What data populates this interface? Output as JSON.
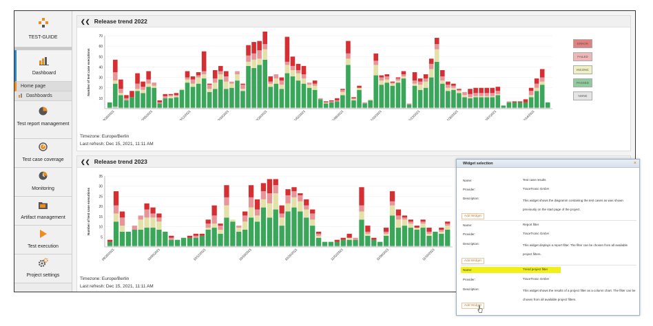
{
  "app": {
    "logo_label": "TEST-GUIDE"
  },
  "sidebar": {
    "dashboard": "Dashboard",
    "home_page": "Home page",
    "dashboards": "Dashboards",
    "items": [
      {
        "label": "Test report management",
        "icon": "pie-chart-icon"
      },
      {
        "label": "Test case coverage",
        "icon": "coverage-gauge-icon"
      },
      {
        "label": "Monitoring",
        "icon": "clock-icon"
      },
      {
        "label": "Artifact management",
        "icon": "folder-icon"
      },
      {
        "label": "Test execution",
        "icon": "play-icon"
      },
      {
        "label": "Project settings",
        "icon": "gear-icon"
      }
    ]
  },
  "panels": [
    {
      "title": "Release trend 2022",
      "timezone": "Timezone: Europe/Berlin",
      "refresh": "Last refresh:  Dec 15, 2021, 11:11 AM"
    },
    {
      "title": "Release trend 2023",
      "timezone": "Timezone: Europe/Berlin",
      "refresh": "Last refresh:  Dec 15, 2021, 11:11 AM"
    }
  ],
  "legend": [
    "ERROR",
    "FAILED",
    "INCONC",
    "PASSED",
    "NONE"
  ],
  "colors": {
    "error": "#d62f33",
    "failed": "#e8959a",
    "inconc": "#e3e0a8",
    "passed": "#3aa65a",
    "none": "#c8c8c8",
    "accent": "#f08c1e",
    "active": "#2e85c8"
  },
  "chart_data": [
    {
      "type": "bar",
      "title": "Release trend 2022",
      "ylabel": "Number of test case executions",
      "ylim": [
        0,
        70
      ],
      "yticks": [
        10,
        20,
        30,
        40,
        50,
        60,
        70
      ],
      "xtick_labels": [
        "09/28/2021",
        "10/05/2021",
        "10/12/2021",
        "10/19/2021",
        "10/26/2021",
        "11/02/2021",
        "11/09/2021",
        "11/16/2021",
        "11/23/2021",
        "11/30/2021",
        "12/07/2021",
        "12/14/2021"
      ],
      "series_order": [
        "none",
        "passed",
        "inconc",
        "failed",
        "error"
      ],
      "stacks": [
        [
          1,
          5,
          0,
          0,
          0
        ],
        [
          2,
          22,
          3,
          8,
          12
        ],
        [
          1,
          12,
          2,
          4,
          9
        ],
        [
          1,
          7,
          0,
          2,
          3
        ],
        [
          1,
          10,
          0,
          0,
          6
        ],
        [
          1,
          16,
          2,
          5,
          10
        ],
        [
          1,
          14,
          3,
          3,
          5
        ],
        [
          1,
          20,
          3,
          4,
          8
        ],
        [
          1,
          19,
          2,
          3,
          0
        ],
        [
          1,
          4,
          0,
          1,
          2
        ],
        [
          1,
          9,
          0,
          2,
          2
        ],
        [
          1,
          9,
          2,
          1,
          1
        ],
        [
          1,
          10,
          1,
          1,
          2
        ],
        [
          1,
          17,
          1,
          0,
          0
        ],
        [
          1,
          24,
          3,
          2,
          6
        ],
        [
          1,
          20,
          3,
          4,
          3
        ],
        [
          1,
          23,
          6,
          2,
          3
        ],
        [
          1,
          28,
          4,
          3,
          19
        ],
        [
          1,
          15,
          3,
          4,
          1
        ],
        [
          1,
          18,
          6,
          4,
          8
        ],
        [
          1,
          27,
          5,
          3,
          5
        ],
        [
          1,
          18,
          7,
          5,
          5
        ],
        [
          1,
          19,
          4,
          2,
          0
        ],
        [
          1,
          26,
          6,
          3,
          0
        ],
        [
          1,
          16,
          2,
          4,
          1
        ],
        [
          1,
          40,
          4,
          6,
          10
        ],
        [
          1,
          38,
          8,
          6,
          11
        ],
        [
          1,
          41,
          6,
          8,
          9
        ],
        [
          1,
          46,
          10,
          5,
          12
        ],
        [
          1,
          20,
          3,
          2,
          5
        ],
        [
          1,
          23,
          5,
          4,
          0
        ],
        [
          1,
          18,
          4,
          4,
          3
        ],
        [
          1,
          33,
          8,
          3,
          24
        ],
        [
          1,
          30,
          6,
          4,
          9
        ],
        [
          1,
          26,
          7,
          3,
          6
        ],
        [
          1,
          23,
          5,
          4,
          8
        ],
        [
          1,
          19,
          3,
          2,
          0
        ],
        [
          1,
          17,
          4,
          2,
          3
        ],
        [
          1,
          8,
          0,
          1,
          0
        ],
        [
          1,
          4,
          1,
          0,
          1
        ],
        [
          1,
          5,
          0,
          1,
          1
        ],
        [
          1,
          6,
          0,
          1,
          2
        ],
        [
          1,
          12,
          3,
          2,
          1
        ],
        [
          1,
          41,
          6,
          5,
          12
        ],
        [
          1,
          7,
          1,
          1,
          1
        ],
        [
          1,
          17,
          2,
          0,
          2
        ],
        [
          1,
          4,
          0,
          1,
          0
        ],
        [
          1,
          7,
          1,
          0,
          0
        ],
        [
          1,
          31,
          10,
          4,
          7
        ],
        [
          1,
          22,
          4,
          3,
          2
        ],
        [
          1,
          24,
          3,
          3,
          2
        ],
        [
          1,
          21,
          2,
          1,
          1
        ],
        [
          1,
          24,
          2,
          2,
          1
        ],
        [
          1,
          28,
          2,
          2,
          3
        ],
        [
          1,
          3,
          0,
          1,
          0
        ],
        [
          1,
          21,
          2,
          3,
          8
        ],
        [
          1,
          17,
          5,
          3,
          3
        ],
        [
          1,
          19,
          6,
          3,
          4
        ],
        [
          1,
          29,
          8,
          5,
          5
        ],
        [
          1,
          44,
          12,
          5,
          6
        ],
        [
          1,
          23,
          3,
          4,
          6
        ],
        [
          1,
          16,
          3,
          3,
          3
        ],
        [
          1,
          17,
          2,
          2,
          2
        ],
        [
          1,
          14,
          2,
          1,
          1
        ],
        [
          1,
          10,
          2,
          3,
          0
        ],
        [
          1,
          9,
          1,
          3,
          5
        ],
        [
          1,
          10,
          1,
          3,
          5
        ],
        [
          1,
          10,
          1,
          3,
          5
        ],
        [
          1,
          10,
          1,
          3,
          5
        ],
        [
          1,
          10,
          1,
          3,
          5
        ],
        [
          1,
          12,
          1,
          3,
          4
        ],
        [
          1,
          2,
          0,
          0,
          0
        ],
        [
          1,
          5,
          0,
          1,
          0
        ],
        [
          1,
          5,
          0,
          0,
          1
        ],
        [
          1,
          5,
          0,
          0,
          1
        ],
        [
          1,
          5,
          0,
          0,
          3
        ],
        [
          1,
          10,
          2,
          4,
          3
        ],
        [
          1,
          16,
          3,
          4,
          5
        ],
        [
          1,
          22,
          3,
          4,
          8
        ],
        [
          1,
          5,
          0,
          0,
          0
        ]
      ]
    },
    {
      "type": "bar",
      "title": "Release trend 2023",
      "ylabel": "Number of test case executions",
      "ylim": [
        0,
        35
      ],
      "yticks": [
        5,
        10,
        15,
        20,
        25,
        30,
        35
      ],
      "xtick_labels": [
        "09/28/2021",
        "10/05/2021",
        "10/12/2021",
        "10/19/2021",
        "10/26/2021",
        "11/02/2021",
        "11/09/2021",
        "11/16/2021"
      ],
      "series_order": [
        "none",
        "passed",
        "inconc",
        "failed",
        "error"
      ],
      "stacks": [
        [
          0.5,
          2,
          0,
          0,
          1
        ],
        [
          0.5,
          12,
          4,
          4,
          7
        ],
        [
          0.5,
          7,
          3,
          4,
          3
        ],
        [
          0.5,
          7,
          0,
          0,
          0
        ],
        [
          0.5,
          8,
          0,
          2,
          0
        ],
        [
          0.5,
          8,
          5,
          2,
          0
        ],
        [
          0.5,
          9,
          5,
          4,
          3
        ],
        [
          0.5,
          9,
          5,
          2,
          3
        ],
        [
          0.5,
          8,
          4,
          2,
          2
        ],
        [
          0.5,
          7,
          0,
          0,
          0
        ],
        [
          0.5,
          3,
          0,
          1,
          1
        ],
        [
          0.5,
          3,
          0,
          0,
          0
        ],
        [
          0.5,
          4,
          0,
          0,
          0
        ],
        [
          0.5,
          4,
          0,
          0,
          1
        ],
        [
          0.5,
          4,
          0,
          1,
          1
        ],
        [
          0.5,
          5,
          0,
          0,
          1
        ],
        [
          0.5,
          8,
          1,
          2,
          2
        ],
        [
          0.5,
          9,
          2,
          4,
          5
        ],
        [
          0.5,
          6,
          2,
          2,
          1
        ],
        [
          0.5,
          14,
          6,
          4,
          6
        ],
        [
          0.5,
          12,
          1,
          0,
          0
        ],
        [
          0.5,
          7,
          2,
          1,
          0
        ],
        [
          0.5,
          8,
          4,
          3,
          2
        ],
        [
          0.5,
          14,
          5,
          5,
          6
        ],
        [
          0.5,
          12,
          3,
          3,
          5
        ],
        [
          0.5,
          19,
          4,
          4,
          4
        ],
        [
          0.5,
          14,
          7,
          5,
          7
        ],
        [
          0.5,
          18,
          8,
          4,
          3
        ],
        [
          0.5,
          10,
          4,
          2,
          4
        ],
        [
          0.5,
          17,
          4,
          4,
          3
        ],
        [
          0.5,
          19,
          5,
          3,
          2
        ],
        [
          0.5,
          17,
          5,
          3,
          1
        ],
        [
          0.5,
          14,
          4,
          2,
          3
        ],
        [
          0.5,
          10,
          3,
          3,
          2
        ],
        [
          0.5,
          4,
          1,
          1,
          1
        ],
        [
          0.5,
          2,
          0,
          0,
          0
        ],
        [
          0.5,
          2,
          0,
          0,
          0
        ],
        [
          0.5,
          2,
          0,
          0,
          1
        ],
        [
          0.5,
          3,
          0,
          0,
          1
        ],
        [
          0.5,
          3,
          1,
          0,
          2
        ],
        [
          0.5,
          3,
          0,
          1,
          0
        ],
        [
          0.5,
          13,
          4,
          3,
          9
        ],
        [
          0.5,
          5,
          1,
          1,
          3
        ],
        [
          0.5,
          3,
          0,
          0,
          1
        ],
        [
          0.5,
          2,
          0,
          0,
          0
        ],
        [
          0.5,
          5,
          1,
          1,
          2
        ],
        [
          0.5,
          15,
          5,
          2,
          5
        ],
        [
          0.5,
          9,
          4,
          2,
          3
        ],
        [
          0.5,
          10,
          3,
          1,
          1
        ],
        [
          0.5,
          9,
          2,
          1,
          1
        ],
        [
          0.5,
          8,
          1,
          0,
          1
        ],
        [
          0.5,
          9,
          2,
          1,
          1
        ],
        [
          0.5,
          5,
          1,
          1,
          2
        ],
        [
          0.5,
          7,
          0,
          0,
          0
        ],
        [
          0.5,
          6,
          1,
          1,
          1
        ],
        [
          0.5,
          8,
          2,
          1,
          1
        ]
      ]
    }
  ],
  "widget_dialog": {
    "title": "Widget selection",
    "close": "×",
    "field_labels": {
      "name": "Name:",
      "provider": "Provider:",
      "description": "Description:"
    },
    "add_label": "Add Widget",
    "widgets": [
      {
        "name": "Test case results",
        "provider": "TraceTronic GmbH",
        "description": "This widget shows the diagramm containing the test cases as was shown previously on the start page of the project."
      },
      {
        "name": "Report filter",
        "provider": "TraceTronic GmbH",
        "description": "This widget displays a report filter. The filter can be chosen from all available project filters."
      },
      {
        "name": "Trend project filter",
        "provider": "TraceTronic GmbH",
        "description": "This widget shows the results of a project filter as a column chart. The filter can be chosen from all available project filters."
      }
    ]
  }
}
